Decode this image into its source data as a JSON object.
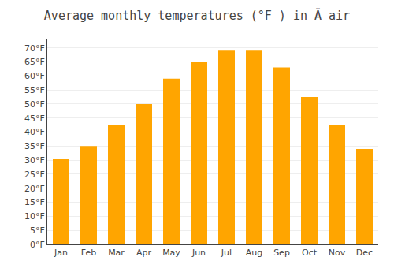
{
  "chart_data": {
    "type": "bar",
    "title": "Average monthly temperatures (°F ) in Ä air",
    "categories": [
      "Jan",
      "Feb",
      "Mar",
      "Apr",
      "May",
      "Jun",
      "Jul",
      "Aug",
      "Sep",
      "Oct",
      "Nov",
      "Dec"
    ],
    "values": [
      30.5,
      35.0,
      42.5,
      50.0,
      59.0,
      65.0,
      69.0,
      69.0,
      63.0,
      52.5,
      42.5,
      34.0
    ],
    "color": "#FFA500",
    "ylim": [
      0,
      73
    ],
    "yticks": [
      {
        "value": 0,
        "label": "0°F"
      },
      {
        "value": 5,
        "label": "5°F"
      },
      {
        "value": 10,
        "label": "10°F"
      },
      {
        "value": 15,
        "label": "15°F"
      },
      {
        "value": 20,
        "label": "20°F"
      },
      {
        "value": 25,
        "label": "25°F"
      },
      {
        "value": 30,
        "label": "30°F"
      },
      {
        "value": 35,
        "label": "35°F"
      },
      {
        "value": 40,
        "label": "40°F"
      },
      {
        "value": 45,
        "label": "45°F"
      },
      {
        "value": 50,
        "label": "50°F"
      },
      {
        "value": 55,
        "label": "55°F"
      },
      {
        "value": 60,
        "label": "60°F"
      },
      {
        "value": 65,
        "label": "65°F"
      },
      {
        "value": 70,
        "label": "70°F"
      }
    ],
    "grid": true
  }
}
